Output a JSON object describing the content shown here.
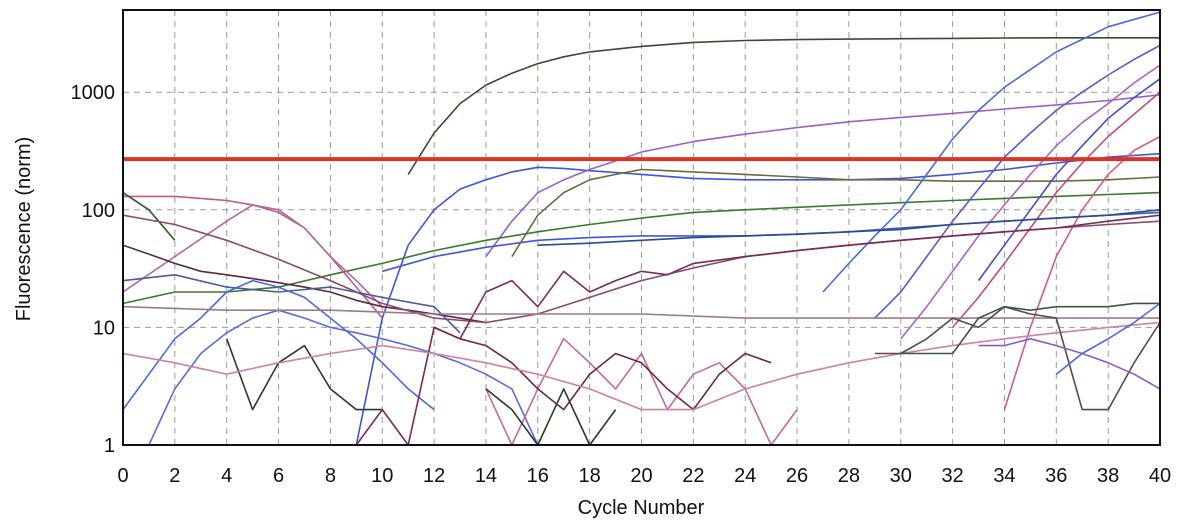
{
  "chart_data": {
    "type": "line",
    "title": "",
    "xlabel": "Cycle Number",
    "ylabel": "Fluorescence (norm)",
    "x_scale": "linear",
    "y_scale": "log",
    "xlim": [
      0,
      40
    ],
    "ylim": [
      1,
      5000
    ],
    "x_ticks": [
      0,
      2,
      4,
      6,
      8,
      10,
      12,
      14,
      16,
      18,
      20,
      22,
      24,
      26,
      28,
      30,
      32,
      34,
      36,
      38,
      40
    ],
    "y_ticks": [
      1,
      10,
      100,
      1000
    ],
    "grid": true,
    "legend": "none",
    "threshold": {
      "value": 270,
      "color": "#d93526"
    },
    "series": [
      {
        "color": "#3a4a2e",
        "x": [
          11,
          12,
          13,
          14,
          15,
          16,
          17,
          18,
          20,
          22,
          24,
          26,
          28,
          30,
          32,
          34,
          36,
          38,
          40
        ],
        "y": [
          200,
          450,
          800,
          1150,
          1450,
          1750,
          2000,
          2200,
          2450,
          2650,
          2750,
          2800,
          2830,
          2850,
          2870,
          2890,
          2900,
          2900,
          2900
        ]
      },
      {
        "color": "#3f55d9",
        "x": [
          9,
          10,
          11,
          12,
          13,
          14,
          15,
          16,
          17,
          18,
          20,
          22,
          24,
          26,
          28,
          30,
          32,
          34,
          36,
          38,
          40
        ],
        "y": [
          1,
          12,
          50,
          100,
          150,
          180,
          210,
          230,
          225,
          215,
          200,
          185,
          180,
          180,
          180,
          185,
          200,
          220,
          250,
          280,
          300
        ]
      },
      {
        "color": "#9a5fc4",
        "x": [
          14,
          15,
          16,
          17,
          18,
          19,
          20,
          22,
          24,
          26,
          28,
          30,
          32,
          34,
          36,
          38,
          40
        ],
        "y": [
          40,
          80,
          140,
          180,
          220,
          260,
          310,
          380,
          440,
          500,
          560,
          610,
          660,
          720,
          780,
          850,
          950
        ]
      },
      {
        "color": "#3f55d9",
        "x": [
          10,
          12,
          14,
          16,
          18,
          20,
          22,
          24,
          26,
          28,
          30,
          32,
          34,
          36,
          38,
          40
        ],
        "y": [
          30,
          40,
          48,
          55,
          58,
          60,
          60,
          60,
          62,
          65,
          70,
          75,
          80,
          85,
          90,
          95
        ]
      },
      {
        "color": "#3a7a2e",
        "x": [
          0,
          2,
          4,
          6,
          8,
          10,
          12,
          14,
          16,
          18,
          20,
          22,
          24,
          26,
          28,
          30,
          32,
          34,
          36,
          38,
          40
        ],
        "y": [
          16,
          20,
          20,
          22,
          28,
          35,
          45,
          55,
          65,
          75,
          85,
          95,
          100,
          105,
          110,
          115,
          120,
          125,
          130,
          135,
          140
        ]
      },
      {
        "color": "#6a6a3a",
        "x": [
          15,
          16,
          17,
          18,
          19,
          20,
          21,
          22,
          24,
          26,
          28,
          30,
          32,
          34,
          36,
          38,
          40
        ],
        "y": [
          40,
          90,
          140,
          180,
          200,
          220,
          215,
          210,
          200,
          190,
          180,
          180,
          175,
          175,
          175,
          180,
          190
        ]
      },
      {
        "color": "#4a6ad9",
        "x": [
          27,
          28,
          29,
          30,
          31,
          32,
          33,
          34,
          36,
          38,
          40
        ],
        "y": [
          20,
          35,
          60,
          100,
          200,
          400,
          700,
          1100,
          2200,
          3600,
          4800
        ]
      },
      {
        "color": "#5a5ad0",
        "x": [
          29,
          30,
          31,
          32,
          33,
          34,
          35,
          36,
          37,
          38,
          39,
          40
        ],
        "y": [
          12,
          20,
          40,
          80,
          150,
          280,
          450,
          700,
          1000,
          1400,
          1900,
          2500
        ]
      },
      {
        "color": "#b060c0",
        "x": [
          30,
          31,
          32,
          33,
          34,
          35,
          36,
          37,
          38,
          39,
          40
        ],
        "y": [
          8,
          15,
          30,
          60,
          110,
          200,
          350,
          550,
          800,
          1200,
          1700
        ]
      },
      {
        "color": "#c04a80",
        "x": [
          32,
          33,
          34,
          35,
          36,
          37,
          38,
          39,
          40
        ],
        "y": [
          10,
          18,
          35,
          70,
          140,
          250,
          420,
          650,
          1000
        ]
      },
      {
        "color": "#d05a90",
        "x": [
          34,
          35,
          36,
          37,
          38,
          39,
          40
        ],
        "y": [
          2,
          10,
          40,
          100,
          200,
          320,
          420
        ]
      },
      {
        "color": "#4a4ad0",
        "x": [
          33,
          34,
          35,
          36,
          37,
          38,
          39,
          40
        ],
        "y": [
          25,
          50,
          100,
          200,
          350,
          600,
          900,
          1300
        ]
      },
      {
        "color": "#c05a8a",
        "x": [
          0,
          1,
          2,
          3,
          4,
          5,
          6,
          7,
          8,
          9,
          10
        ],
        "y": [
          130,
          130,
          130,
          125,
          120,
          110,
          95,
          70,
          40,
          22,
          12
        ]
      },
      {
        "color": "#3a5a2e",
        "x": [
          0,
          1,
          2
        ],
        "y": [
          140,
          100,
          55
        ]
      },
      {
        "color": "#b06aa0",
        "x": [
          0,
          2,
          4,
          5,
          6,
          7,
          8,
          9,
          10
        ],
        "y": [
          20,
          40,
          80,
          110,
          100,
          70,
          40,
          25,
          15
        ]
      },
      {
        "color": "#5a2a3a",
        "x": [
          0,
          1,
          2,
          3,
          4,
          5,
          6,
          7,
          8,
          9,
          10,
          11,
          12,
          13,
          14
        ],
        "y": [
          50,
          42,
          35,
          30,
          28,
          26,
          24,
          22,
          20,
          17,
          15,
          14,
          13,
          12,
          11
        ]
      },
      {
        "color": "#8a4a6a",
        "x": [
          0,
          2,
          4,
          6,
          8,
          10,
          12,
          14,
          16,
          18,
          20,
          22,
          24,
          26,
          28,
          30,
          32,
          34,
          36,
          38,
          40
        ],
        "y": [
          90,
          75,
          55,
          38,
          25,
          16,
          12,
          11,
          13,
          18,
          25,
          32,
          40,
          45,
          50,
          55,
          60,
          65,
          70,
          75,
          80
        ]
      },
      {
        "color": "#4a5a9a",
        "x": [
          0,
          2,
          4,
          6,
          8,
          10,
          12,
          13
        ],
        "y": [
          25,
          28,
          22,
          20,
          22,
          18,
          15,
          9
        ]
      },
      {
        "color": "#4a6ad9",
        "x": [
          0,
          1,
          2,
          3,
          4,
          5,
          6,
          7,
          8,
          9,
          10,
          11,
          12
        ],
        "y": [
          2,
          4,
          8,
          12,
          20,
          25,
          22,
          18,
          12,
          8,
          5,
          3,
          2
        ]
      },
      {
        "color": "#5a6ad9",
        "x": [
          1,
          2,
          3,
          4,
          5,
          6,
          7,
          8,
          9,
          10,
          11,
          12,
          13,
          14,
          15,
          16
        ],
        "y": [
          1,
          3,
          6,
          9,
          12,
          14,
          12,
          10,
          9,
          8,
          7,
          6,
          5,
          4,
          3,
          1
        ]
      },
      {
        "color": "#2a3a2a",
        "x": [
          4,
          5,
          6,
          7,
          8,
          9,
          10
        ],
        "y": [
          8,
          2,
          5,
          7,
          3,
          2,
          2
        ]
      },
      {
        "color": "#7a2a5a",
        "x": [
          9,
          10,
          11,
          12,
          13,
          14,
          15,
          16,
          17,
          18,
          19,
          20,
          21,
          22,
          24,
          26,
          28,
          30,
          32,
          34,
          36,
          38,
          40
        ],
        "y": [
          1,
          2,
          1,
          10,
          8,
          20,
          25,
          15,
          30,
          20,
          25,
          30,
          28,
          35,
          40,
          45,
          50,
          55,
          60,
          65,
          70,
          80,
          90
        ]
      },
      {
        "color": "#c06aa0",
        "x": [
          14,
          15,
          16,
          17,
          18,
          19,
          20,
          21,
          22,
          23,
          24,
          25,
          26
        ],
        "y": [
          3,
          1,
          3,
          8,
          5,
          3,
          6,
          2,
          4,
          5,
          3,
          1,
          2
        ]
      },
      {
        "color": "#2a3a2a",
        "x": [
          14,
          15,
          16,
          17,
          18,
          19
        ],
        "y": [
          3,
          2,
          1,
          3,
          1,
          2
        ]
      },
      {
        "color": "#6a2a3a",
        "x": [
          12,
          13,
          14,
          15,
          16,
          17,
          18,
          19,
          20,
          21,
          22,
          23,
          24,
          25
        ],
        "y": [
          10,
          8,
          7,
          5,
          3,
          2,
          4,
          6,
          5,
          3,
          2,
          4,
          6,
          5
        ]
      },
      {
        "color": "#9a7a8a",
        "x": [
          0,
          4,
          8,
          12,
          16,
          20,
          24,
          28,
          32,
          36,
          40
        ],
        "y": [
          15,
          14,
          14,
          13,
          13,
          13,
          12,
          12,
          12,
          12,
          12
        ]
      },
      {
        "color": "#d080a0",
        "x": [
          0,
          2,
          4,
          6,
          8,
          10,
          12,
          14,
          16,
          18,
          20,
          22,
          24,
          26,
          28,
          30,
          32,
          34,
          36,
          38,
          40
        ],
        "y": [
          6,
          5,
          4,
          5,
          6,
          7,
          6,
          5,
          4,
          3,
          2,
          2,
          3,
          4,
          5,
          6,
          7,
          8,
          9,
          10,
          11
        ]
      },
      {
        "color": "#5a4a4a",
        "x": [
          29,
          30,
          31,
          32,
          33,
          34,
          35,
          36,
          37,
          38,
          39,
          40
        ],
        "y": [
          6,
          6,
          8,
          12,
          10,
          15,
          13,
          12,
          2,
          2,
          5,
          11
        ]
      },
      {
        "color": "#3a5a3a",
        "x": [
          30,
          31,
          32,
          33,
          34,
          35,
          36,
          37,
          38,
          39,
          40
        ],
        "y": [
          6,
          6,
          6,
          12,
          15,
          14,
          15,
          15,
          15,
          16,
          16
        ]
      },
      {
        "color": "#8a5ac0",
        "x": [
          33,
          34,
          35,
          36,
          37,
          38,
          39,
          40
        ],
        "y": [
          7,
          7,
          8,
          7,
          6,
          5,
          4,
          3
        ]
      },
      {
        "color": "#4a6ad9",
        "x": [
          36,
          37,
          38,
          39,
          40
        ],
        "y": [
          4,
          6,
          8,
          11,
          16
        ]
      },
      {
        "color": "#2a4a8a",
        "x": [
          16,
          18,
          20,
          22,
          24,
          26,
          28,
          30,
          32,
          34,
          36,
          38,
          40
        ],
        "y": [
          50,
          52,
          55,
          58,
          60,
          62,
          65,
          68,
          75,
          80,
          85,
          90,
          100
        ]
      }
    ]
  }
}
